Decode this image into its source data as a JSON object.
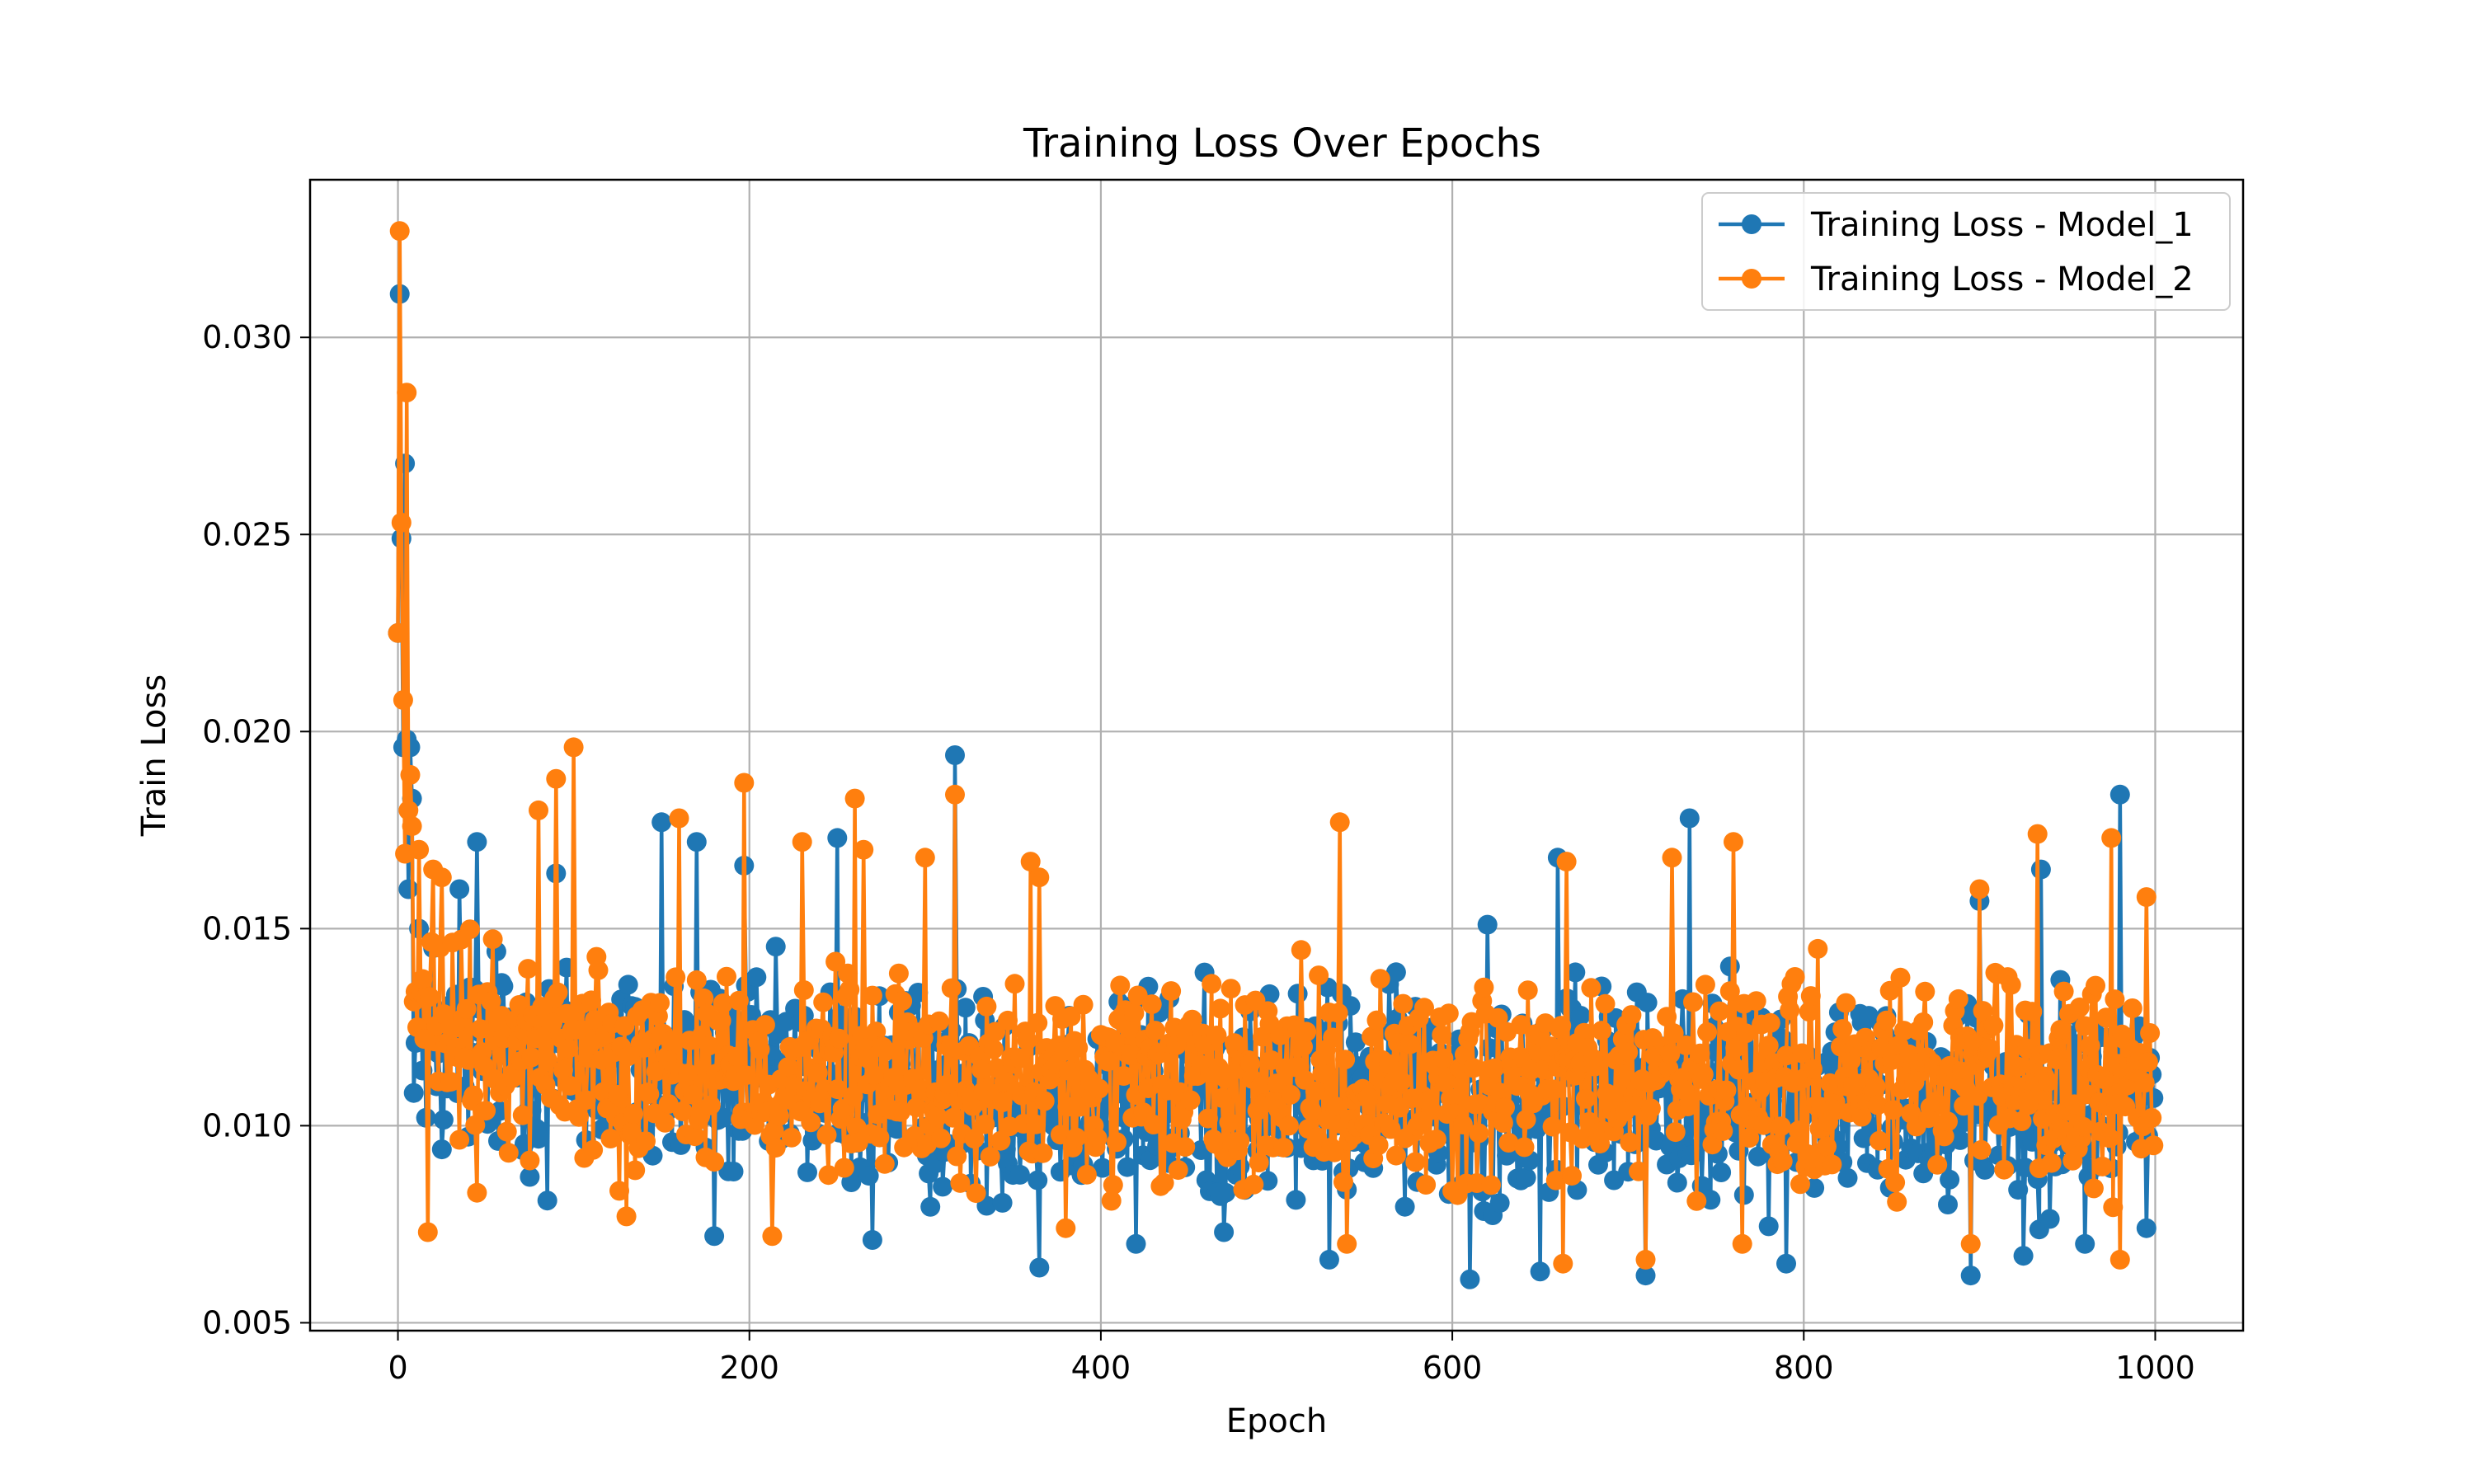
{
  "chart_data": {
    "type": "line",
    "title": "Training Loss Over Epochs",
    "xlabel": "Epoch",
    "ylabel": "Train Loss",
    "xlim": [
      -50,
      1050
    ],
    "ylim": [
      0.0048,
      0.034
    ],
    "x_ticks": [
      0,
      200,
      400,
      600,
      800,
      1000
    ],
    "x_tick_labels": [
      "0",
      "200",
      "400",
      "600",
      "800",
      "1000"
    ],
    "y_ticks": [
      0.005,
      0.01,
      0.015,
      0.02,
      0.025,
      0.03
    ],
    "y_tick_labels": [
      "0.005",
      "0.010",
      "0.015",
      "0.020",
      "0.025",
      "0.030"
    ],
    "grid": true,
    "legend_position": "top-right",
    "marker": "circle",
    "x_range": [
      0,
      999
    ],
    "series": [
      {
        "name": "Training Loss - Model_1",
        "color": "#1f77b4",
        "key_points": [
          [
            0,
            0.0225
          ],
          [
            1,
            0.0311
          ],
          [
            2,
            0.0249
          ],
          [
            3,
            0.0196
          ],
          [
            4,
            0.0268
          ],
          [
            5,
            0.0198
          ],
          [
            6,
            0.016
          ],
          [
            7,
            0.0196
          ],
          [
            8,
            0.0183
          ],
          [
            10,
            0.0121
          ],
          [
            12,
            0.015
          ],
          [
            14,
            0.0114
          ],
          [
            16,
            0.0102
          ],
          [
            18,
            0.0132
          ],
          [
            22,
            0.011
          ],
          [
            25,
            0.0094
          ],
          [
            35,
            0.016
          ],
          [
            45,
            0.0172
          ],
          [
            85,
            0.0081
          ],
          [
            90,
            0.0164
          ],
          [
            150,
            0.0177
          ],
          [
            170,
            0.0172
          ],
          [
            180,
            0.0072
          ],
          [
            197,
            0.0166
          ],
          [
            250,
            0.0173
          ],
          [
            270,
            0.0071
          ],
          [
            317,
            0.0194
          ],
          [
            365,
            0.0064
          ],
          [
            420,
            0.007
          ],
          [
            470,
            0.0073
          ],
          [
            530,
            0.0066
          ],
          [
            610,
            0.0061
          ],
          [
            620,
            0.0151
          ],
          [
            650,
            0.0063
          ],
          [
            660,
            0.0168
          ],
          [
            710,
            0.0062
          ],
          [
            735,
            0.0178
          ],
          [
            790,
            0.0065
          ],
          [
            895,
            0.0062
          ],
          [
            900,
            0.0157
          ],
          [
            925,
            0.0067
          ],
          [
            935,
            0.0165
          ],
          [
            960,
            0.007
          ],
          [
            980,
            0.0184
          ],
          [
            995,
            0.0074
          ],
          [
            999,
            0.0107
          ]
        ],
        "baseline": 0.0108,
        "noise": 0.0023
      },
      {
        "name": "Training Loss - Model_2",
        "color": "#ff7f0e",
        "key_points": [
          [
            0,
            0.0225
          ],
          [
            1,
            0.0327
          ],
          [
            2,
            0.0253
          ],
          [
            3,
            0.0208
          ],
          [
            4,
            0.0169
          ],
          [
            5,
            0.0286
          ],
          [
            6,
            0.018
          ],
          [
            7,
            0.0189
          ],
          [
            8,
            0.0176
          ],
          [
            10,
            0.0134
          ],
          [
            12,
            0.017
          ],
          [
            15,
            0.0122
          ],
          [
            17,
            0.0073
          ],
          [
            20,
            0.0165
          ],
          [
            25,
            0.0163
          ],
          [
            45,
            0.0083
          ],
          [
            80,
            0.018
          ],
          [
            90,
            0.0188
          ],
          [
            100,
            0.0196
          ],
          [
            130,
            0.0077
          ],
          [
            160,
            0.0178
          ],
          [
            197,
            0.0187
          ],
          [
            213,
            0.0072
          ],
          [
            230,
            0.0172
          ],
          [
            260,
            0.0183
          ],
          [
            265,
            0.017
          ],
          [
            300,
            0.0168
          ],
          [
            317,
            0.0184
          ],
          [
            360,
            0.0167
          ],
          [
            365,
            0.0163
          ],
          [
            380,
            0.0074
          ],
          [
            536,
            0.0177
          ],
          [
            540,
            0.007
          ],
          [
            663,
            0.0065
          ],
          [
            665,
            0.0167
          ],
          [
            710,
            0.0066
          ],
          [
            725,
            0.0168
          ],
          [
            760,
            0.0172
          ],
          [
            765,
            0.007
          ],
          [
            895,
            0.007
          ],
          [
            900,
            0.016
          ],
          [
            933,
            0.0174
          ],
          [
            975,
            0.0173
          ],
          [
            980,
            0.0066
          ],
          [
            995,
            0.0158
          ],
          [
            999,
            0.0095
          ]
        ],
        "baseline": 0.011,
        "noise": 0.0022
      }
    ]
  }
}
